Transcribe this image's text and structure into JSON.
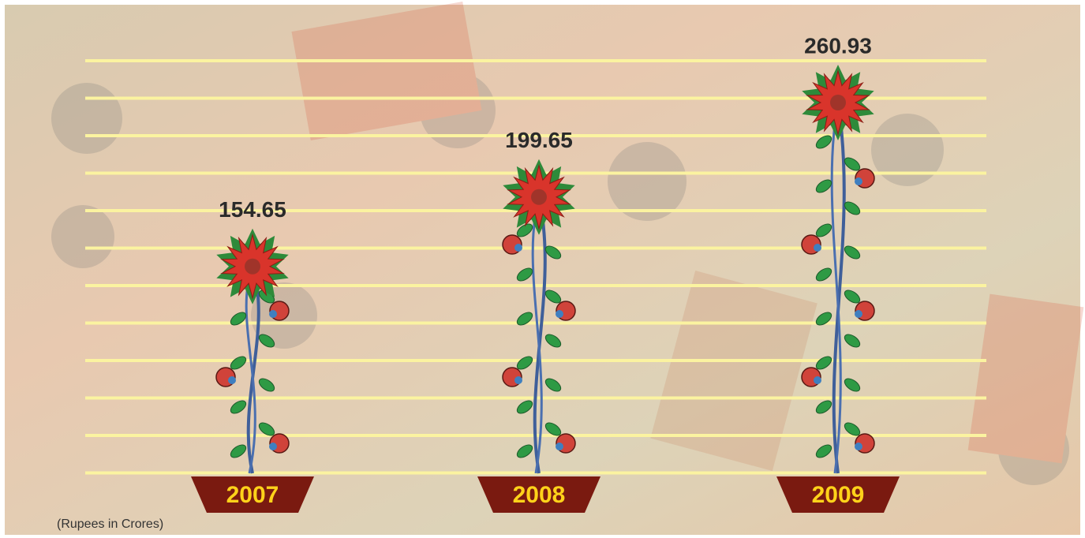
{
  "chart_data": {
    "type": "bar",
    "categories": [
      "2007",
      "2008",
      "2009"
    ],
    "values": [
      154.65,
      199.65,
      260.93
    ],
    "color": "#d9342b",
    "note": "(Rupees in Crores)"
  }
}
